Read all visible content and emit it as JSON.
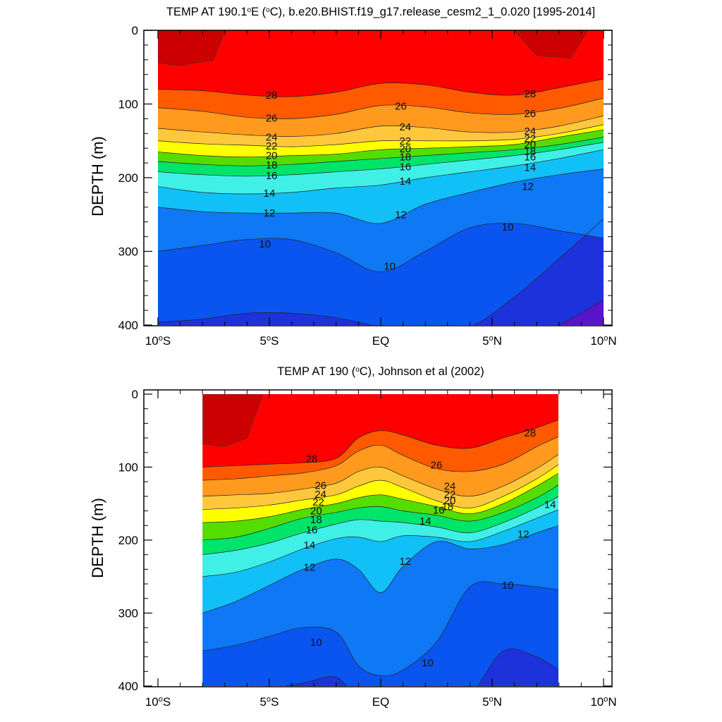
{
  "levels": [
    8,
    9,
    10,
    11,
    12,
    13,
    14,
    15,
    16,
    17,
    18,
    19,
    20,
    21,
    22,
    23,
    24,
    25,
    26,
    27,
    28,
    29
  ],
  "palette": [
    "#5a14cc",
    "#1e32dc",
    "#0a55f0",
    "#0f78f5",
    "#0f9af8",
    "#12c0f8",
    "#1ee2f5",
    "#40f0e6",
    "#00f2c4",
    "#00e46a",
    "#00cc00",
    "#55dd00",
    "#c9f200",
    "#ffff00",
    "#ffe030",
    "#ffc83c",
    "#ffb040",
    "#ff9a1e",
    "#ff7a0a",
    "#ff5a00",
    "#ff2d00",
    "#ff0000",
    "#cc0000"
  ],
  "chart_data": [
    {
      "type": "heatmap",
      "title": "TEMP AT 190.1°E (°C), b.e20.BHIST.f19_g17.release_cesm2_1_0.020 [1995-2014]",
      "title_parts": [
        "TEMP AT 190.1",
        "o",
        "E (",
        "o",
        "C), b.e20.BHIST.f19_g17.release_cesm2_1_0.020 [1995-2014]"
      ],
      "ylabel": "DEPTH (m)",
      "xlim": [
        -10,
        10
      ],
      "ylim": [
        400,
        0
      ],
      "data_x_range": [
        -10,
        10
      ],
      "x_ticks": [
        {
          "v": -10,
          "parts": [
            "10",
            "o",
            "S"
          ]
        },
        {
          "v": -5,
          "parts": [
            "5",
            "o",
            "S"
          ]
        },
        {
          "v": 0,
          "parts": [
            "EQ",
            "",
            ""
          ]
        },
        {
          "v": 5,
          "parts": [
            "5",
            "o",
            "N"
          ]
        },
        {
          "v": 10,
          "parts": [
            "10",
            "o",
            "N"
          ]
        }
      ],
      "y_ticks": [
        "0",
        "100",
        "200",
        "300",
        "400"
      ],
      "y_tick_values": [
        0,
        100,
        200,
        300,
        400
      ],
      "x": [
        -10,
        -8,
        -6,
        -4,
        -2,
        0,
        2,
        4,
        6,
        8,
        10
      ],
      "isotherm_depths": {
        "28": [
          80,
          82,
          88,
          90,
          84,
          72,
          74,
          84,
          88,
          78,
          66
        ],
        "26": [
          105,
          110,
          118,
          120,
          114,
          102,
          104,
          112,
          114,
          106,
          92
        ],
        "24": [
          133,
          138,
          142,
          144,
          140,
          130,
          132,
          138,
          138,
          130,
          116
        ],
        "22": [
          150,
          154,
          156,
          158,
          155,
          150,
          150,
          150,
          148,
          140,
          128
        ],
        "20": [
          165,
          170,
          172,
          170,
          168,
          162,
          160,
          158,
          155,
          145,
          135
        ],
        "18": [
          178,
          182,
          184,
          182,
          178,
          174,
          170,
          166,
          162,
          155,
          145
        ],
        "16": [
          192,
          196,
          198,
          196,
          192,
          188,
          182,
          176,
          170,
          162,
          152
        ],
        "14": [
          212,
          220,
          222,
          220,
          214,
          210,
          200,
          192,
          184,
          174,
          162
        ],
        "12": [
          240,
          246,
          248,
          248,
          248,
          262,
          236,
          220,
          206,
          196,
          188
        ],
        "10": [
          300,
          292,
          284,
          284,
          302,
          328,
          300,
          268,
          262,
          272,
          282
        ]
      },
      "contour_labels": [
        {
          "text": "28",
          "x": -4.9,
          "y": 88
        },
        {
          "text": "26",
          "x": -4.9,
          "y": 119
        },
        {
          "text": "24",
          "x": -4.9,
          "y": 145
        },
        {
          "text": "22",
          "x": -4.9,
          "y": 157
        },
        {
          "text": "20",
          "x": -4.9,
          "y": 170
        },
        {
          "text": "18",
          "x": -4.9,
          "y": 183
        },
        {
          "text": "16",
          "x": -4.9,
          "y": 197
        },
        {
          "text": "14",
          "x": -5.0,
          "y": 221
        },
        {
          "text": "12",
          "x": -5.0,
          "y": 248
        },
        {
          "text": "10",
          "x": -5.2,
          "y": 290
        },
        {
          "text": "26",
          "x": 0.9,
          "y": 103
        },
        {
          "text": "24",
          "x": 1.1,
          "y": 131
        },
        {
          "text": "22",
          "x": 1.1,
          "y": 150
        },
        {
          "text": "20",
          "x": 1.1,
          "y": 161
        },
        {
          "text": "18",
          "x": 1.1,
          "y": 172
        },
        {
          "text": "16",
          "x": 1.1,
          "y": 185
        },
        {
          "text": "14",
          "x": 1.1,
          "y": 205
        },
        {
          "text": "12",
          "x": 0.9,
          "y": 250
        },
        {
          "text": "10",
          "x": 0.4,
          "y": 320
        },
        {
          "text": "28",
          "x": 6.7,
          "y": 86
        },
        {
          "text": "26",
          "x": 6.7,
          "y": 113
        },
        {
          "text": "24",
          "x": 6.7,
          "y": 137
        },
        {
          "text": "22",
          "x": 6.7,
          "y": 147
        },
        {
          "text": "20",
          "x": 6.7,
          "y": 155
        },
        {
          "text": "18",
          "x": 6.7,
          "y": 164
        },
        {
          "text": "16",
          "x": 6.7,
          "y": 172
        },
        {
          "text": "14",
          "x": 6.7,
          "y": 186
        },
        {
          "text": "12",
          "x": 6.6,
          "y": 212
        },
        {
          "text": "10",
          "x": 5.7,
          "y": 267
        }
      ],
      "deep_levels": [
        {
          "level": 9,
          "depths": [
            396,
            392,
            384,
            384,
            390,
            402,
            404,
            402,
            362,
            310,
            256
          ]
        },
        {
          "level": 8,
          "depths": [
            420,
            420,
            420,
            420,
            420,
            420,
            420,
            420,
            420,
            400,
            366
          ]
        }
      ],
      "warm_pools": [
        {
          "level": 29,
          "top": [
            0,
            0,
            0,
            0,
            0,
            0
          ],
          "bottom": [
            44,
            48,
            40,
            0,
            0,
            0
          ],
          "x": [
            -10,
            -9,
            -7.5,
            -7
          ]
        },
        {
          "level": 29,
          "top": [
            0,
            0,
            0,
            0
          ],
          "bottom": [
            0,
            34,
            38,
            0
          ],
          "x": [
            6,
            7,
            8.5,
            9.3
          ]
        }
      ]
    },
    {
      "type": "heatmap",
      "title": "TEMP AT 190 (°C), Johnson et al (2002)",
      "title_parts": [
        "TEMP AT 190 (",
        "o",
        "C), Johnson et al (2002)"
      ],
      "ylabel": "DEPTH (m)",
      "xlim": [
        -10,
        10
      ],
      "ylim": [
        400,
        0
      ],
      "data_x_range": [
        -8,
        8
      ],
      "x_ticks": [
        {
          "v": -10,
          "parts": [
            "10",
            "o",
            "S"
          ]
        },
        {
          "v": -5,
          "parts": [
            "5",
            "o",
            "S"
          ]
        },
        {
          "v": 0,
          "parts": [
            "EQ",
            "",
            ""
          ]
        },
        {
          "v": 5,
          "parts": [
            "5",
            "o",
            "N"
          ]
        },
        {
          "v": 10,
          "parts": [
            "10",
            "o",
            "N"
          ]
        }
      ],
      "y_ticks": [
        "0",
        "100",
        "200",
        "300",
        "400"
      ],
      "y_tick_values": [
        0,
        100,
        200,
        300,
        400
      ],
      "x": [
        -8,
        -6.5,
        -5,
        -3.5,
        -2,
        -1,
        0,
        1,
        2.5,
        4,
        5.5,
        7,
        8
      ],
      "isotherm_depths": {
        "28": [
          100,
          98,
          96,
          94,
          88,
          60,
          50,
          56,
          70,
          74,
          60,
          46,
          35
        ],
        "26": [
          118,
          116,
          112,
          108,
          98,
          78,
          70,
          84,
          102,
          106,
          96,
          72,
          58
        ],
        "24": [
          140,
          138,
          136,
          130,
          122,
          106,
          100,
          112,
          130,
          140,
          126,
          102,
          82
        ],
        "22": [
          158,
          156,
          152,
          145,
          138,
          126,
          118,
          128,
          146,
          156,
          140,
          116,
          96
        ],
        "20": [
          176,
          174,
          168,
          158,
          150,
          142,
          138,
          144,
          154,
          164,
          150,
          126,
          108
        ],
        "18": [
          200,
          196,
          184,
          170,
          162,
          156,
          154,
          160,
          166,
          174,
          162,
          142,
          124
        ],
        "16": [
          220,
          214,
          204,
          190,
          178,
          172,
          174,
          176,
          182,
          190,
          176,
          156,
          140
        ],
        "14": [
          250,
          244,
          230,
          212,
          198,
          196,
          202,
          194,
          196,
          202,
          188,
          170,
          158
        ],
        "12": [
          300,
          284,
          262,
          240,
          226,
          240,
          272,
          236,
          202,
          212,
          206,
          190,
          180
        ],
        "10": [
          352,
          344,
          332,
          320,
          326,
          372,
          386,
          378,
          340,
          264,
          260,
          264,
          268
        ]
      },
      "contour_labels": [
        {
          "text": "28",
          "x": -3.1,
          "y": 89
        },
        {
          "text": "26",
          "x": -2.7,
          "y": 125
        },
        {
          "text": "24",
          "x": -2.7,
          "y": 137
        },
        {
          "text": "22",
          "x": -2.8,
          "y": 148
        },
        {
          "text": "20",
          "x": -2.9,
          "y": 160
        },
        {
          "text": "18",
          "x": -2.9,
          "y": 172
        },
        {
          "text": "16",
          "x": -3.1,
          "y": 186
        },
        {
          "text": "14",
          "x": -3.2,
          "y": 207
        },
        {
          "text": "12",
          "x": -3.2,
          "y": 237
        },
        {
          "text": "10",
          "x": -2.9,
          "y": 340
        },
        {
          "text": "26",
          "x": 2.5,
          "y": 97
        },
        {
          "text": "24",
          "x": 3.1,
          "y": 126
        },
        {
          "text": "22",
          "x": 3.1,
          "y": 137
        },
        {
          "text": "20",
          "x": 3.1,
          "y": 146
        },
        {
          "text": "18",
          "x": 3.0,
          "y": 154
        },
        {
          "text": "16",
          "x": 2.6,
          "y": 159
        },
        {
          "text": "14",
          "x": 2.0,
          "y": 174
        },
        {
          "text": "12",
          "x": 1.1,
          "y": 229
        },
        {
          "text": "10",
          "x": 2.1,
          "y": 368
        },
        {
          "text": "28",
          "x": 6.7,
          "y": 53
        },
        {
          "text": "14",
          "x": 7.6,
          "y": 151
        },
        {
          "text": "12",
          "x": 6.4,
          "y": 192
        },
        {
          "text": "10",
          "x": 5.7,
          "y": 262
        }
      ],
      "deep_levels": [
        {
          "level": 9,
          "depths": [
            420,
            412,
            404,
            396,
            388,
            420,
            420,
            420,
            420,
            412,
            352,
            360,
            378
          ]
        }
      ],
      "warm_pools": [
        {
          "level": 29,
          "top": [
            0,
            0,
            0,
            0,
            0
          ],
          "bottom": [
            68,
            72,
            60,
            0,
            0
          ],
          "x": [
            -8,
            -7,
            -6,
            -5.3
          ]
        }
      ]
    }
  ]
}
